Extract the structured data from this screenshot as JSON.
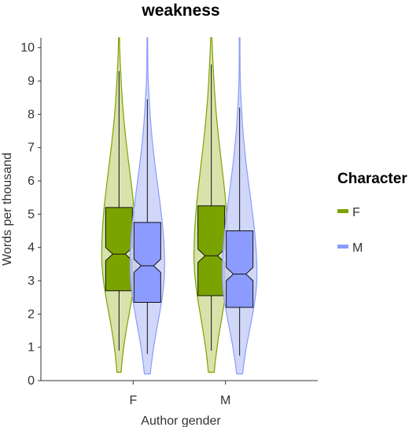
{
  "chart_data": {
    "type": "violin",
    "title": "weakness",
    "xlabel": "Author gender",
    "ylabel": "Words per thousand",
    "ylim": [
      0,
      10.3
    ],
    "yticks": [
      0,
      1,
      2,
      3,
      4,
      5,
      6,
      7,
      8,
      9,
      10
    ],
    "categories": [
      "F",
      "M"
    ],
    "legend": {
      "title": "Character",
      "position": "right",
      "entries": [
        {
          "label": "F",
          "color": "#7ba300"
        },
        {
          "label": "M",
          "color": "#8b9bff"
        }
      ]
    },
    "series": [
      {
        "name": "F",
        "color": "#7ba300",
        "fill": "#d2dd9c",
        "groups": [
          {
            "category": "F",
            "whisker_low": 0.9,
            "q1": 2.7,
            "median": 3.8,
            "q3": 5.2,
            "whisker_high": 9.3,
            "notch_low": 3.6,
            "notch_high": 4.0,
            "violin_min": 0.25,
            "violin_max": 10.3
          },
          {
            "category": "M",
            "whisker_low": 0.9,
            "q1": 2.55,
            "median": 3.75,
            "q3": 5.25,
            "whisker_high": 9.5,
            "notch_low": 3.55,
            "notch_high": 3.95,
            "violin_min": 0.25,
            "violin_max": 10.3
          }
        ]
      },
      {
        "name": "M",
        "color": "#8b9bff",
        "fill": "#c9d0f7",
        "groups": [
          {
            "category": "F",
            "whisker_low": 0.8,
            "q1": 2.35,
            "median": 3.45,
            "q3": 4.75,
            "whisker_high": 8.45,
            "notch_low": 3.25,
            "notch_high": 3.65,
            "violin_min": 0.2,
            "violin_max": 10.3
          },
          {
            "category": "M",
            "whisker_low": 0.75,
            "q1": 2.2,
            "median": 3.2,
            "q3": 4.5,
            "whisker_high": 8.2,
            "notch_low": 3.0,
            "notch_high": 3.4,
            "violin_min": 0.2,
            "violin_max": 10.3
          }
        ]
      }
    ]
  }
}
